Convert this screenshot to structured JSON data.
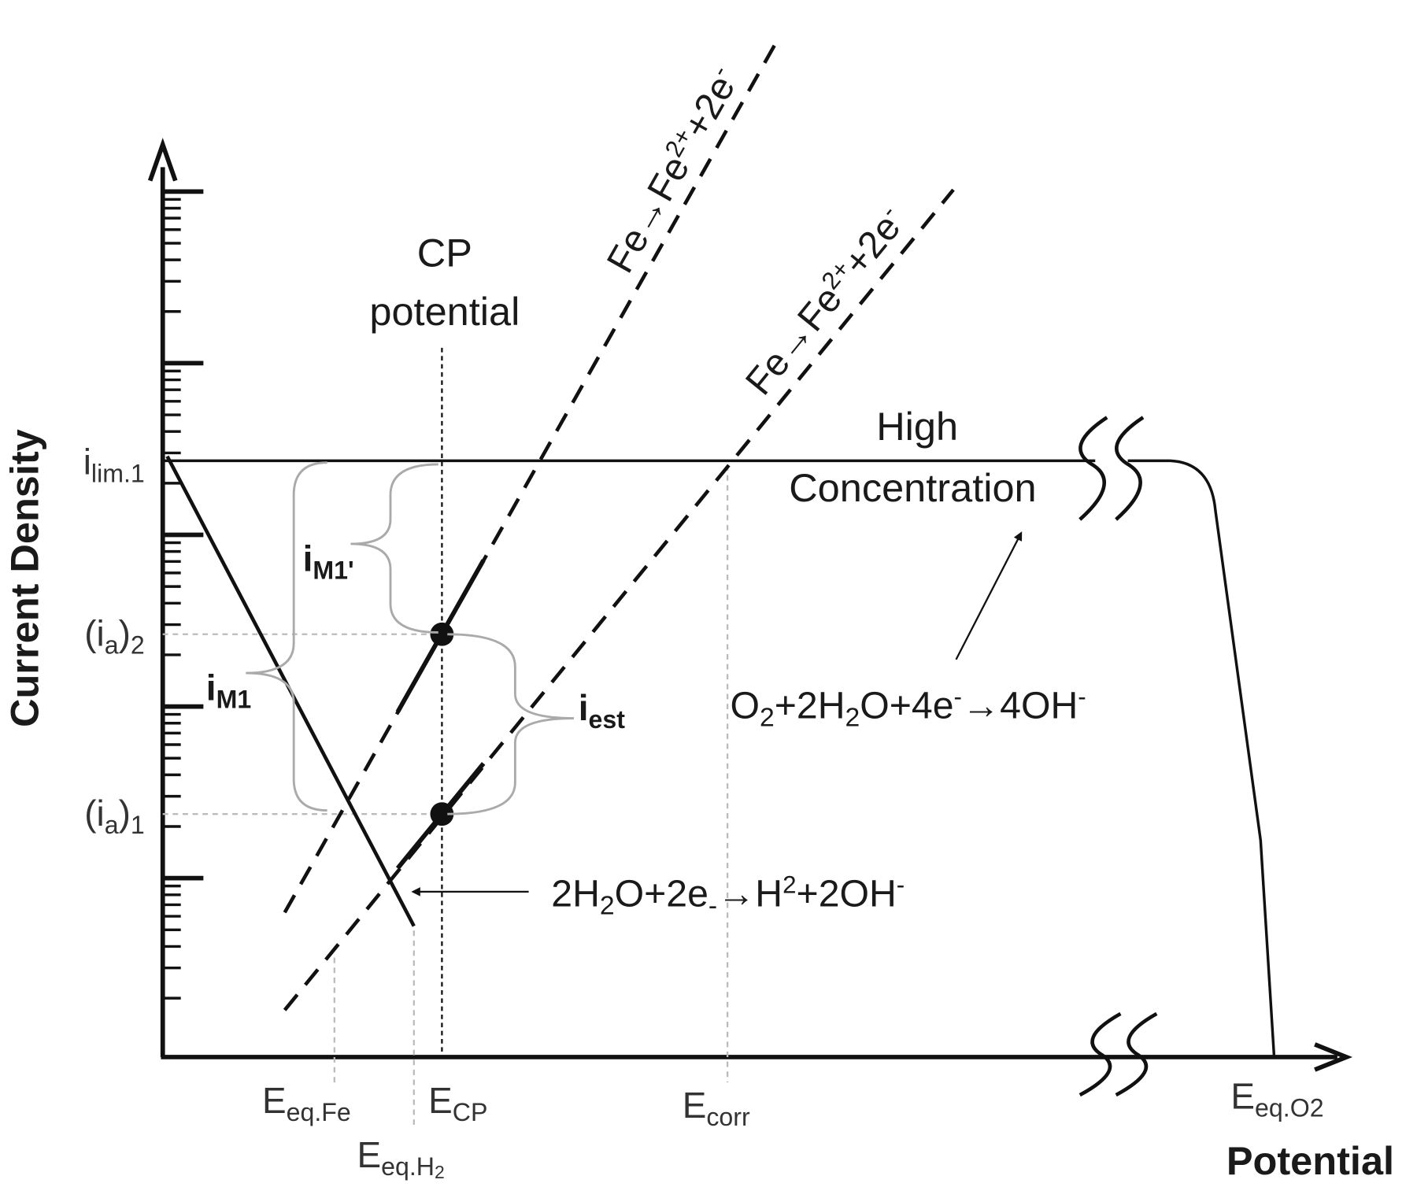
{
  "axes": {
    "y_label": "Current Density",
    "x_label": "Potential"
  },
  "y_axis_labels": {
    "i_lim1": [
      "i",
      "lim.1"
    ],
    "ia2": [
      "(i",
      "a",
      ")",
      "2"
    ],
    "ia1": [
      "(i",
      "a",
      ")",
      "1"
    ]
  },
  "x_axis_labels": {
    "e_eq_fe": [
      "E",
      "eq.Fe"
    ],
    "e_cp": [
      "E",
      "CP"
    ],
    "e_corr": [
      "E",
      "corr"
    ],
    "e_eq_h2": [
      "E",
      "eq.H",
      "2"
    ],
    "e_eq_o2": [
      "E",
      "eq.O2"
    ]
  },
  "annotations": {
    "cp_line1": "CP",
    "cp_line2": "potential",
    "high_line1": "High",
    "high_line2": "Concentration",
    "i_m1": [
      "i",
      "M1"
    ],
    "i_m1_prime": [
      "i",
      "M1'"
    ],
    "i_est": [
      "i",
      "est"
    ]
  },
  "reactions": {
    "fe_upper": [
      "Fe→Fe",
      "2+",
      "+2e",
      "-"
    ],
    "fe_lower": [
      "Fe→Fe",
      "2+",
      "+2e",
      "-"
    ],
    "oxygen": [
      "O",
      "2",
      "+2H",
      "2",
      "O+4e",
      "-",
      "→4OH",
      "-"
    ],
    "hydrogen": [
      "2H",
      "2",
      "O+2e",
      "-",
      "→H",
      "2",
      "+2OH",
      "-"
    ]
  }
}
